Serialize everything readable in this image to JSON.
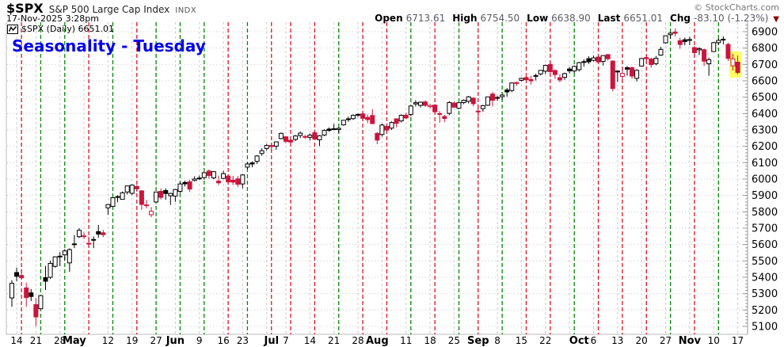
{
  "header": {
    "symbol": "$SPX",
    "name": "S&P 500 Large Cap Index",
    "exchange": "INDX",
    "timestamp": "17-Nov-2025 3:28pm",
    "copyright": "© StockCharts.com"
  },
  "quote": {
    "open_label": "Open",
    "open": "6713.61",
    "high_label": "High",
    "high": "6754.50",
    "low_label": "Low",
    "low": "6638.90",
    "last_label": "Last",
    "last": "6651.01",
    "chg_label": "Chg",
    "chg": "-83.10 (-1.23%)",
    "direction": "down"
  },
  "legend": {
    "text": "$SPX (Daily) 6651.01"
  },
  "annotation": {
    "text": "Seasonality - Tuesday",
    "color": "#0000ee"
  },
  "chart_data": {
    "type": "candlestick",
    "title": "$SPX Daily with Tuesday seasonality lines",
    "xlabel": "",
    "ylabel": "",
    "ylim": [
      5085,
      6955
    ],
    "grid": true,
    "legend_position": "top-left",
    "y_ticks": [
      5100,
      5200,
      5300,
      5400,
      5500,
      5600,
      5700,
      5800,
      5900,
      6000,
      6100,
      6200,
      6300,
      6400,
      6500,
      6600,
      6700,
      6800,
      6900
    ],
    "x_axis_labels": [
      {
        "i": 1,
        "t": "14",
        "b": 0
      },
      {
        "i": 5,
        "t": "21",
        "b": 0
      },
      {
        "i": 10,
        "t": "28",
        "b": 0
      },
      {
        "i": 13,
        "t": "May",
        "b": 1
      },
      {
        "i": 20,
        "t": "12",
        "b": 0
      },
      {
        "i": 25,
        "t": "19",
        "b": 0
      },
      {
        "i": 30,
        "t": "27",
        "b": 0
      },
      {
        "i": 34,
        "t": "Jun",
        "b": 1
      },
      {
        "i": 39,
        "t": "9",
        "b": 0
      },
      {
        "i": 44,
        "t": "16",
        "b": 0
      },
      {
        "i": 48,
        "t": "23",
        "b": 0
      },
      {
        "i": 54,
        "t": "Jul",
        "b": 1
      },
      {
        "i": 57,
        "t": "7",
        "b": 0
      },
      {
        "i": 62,
        "t": "14",
        "b": 0
      },
      {
        "i": 67,
        "t": "21",
        "b": 0
      },
      {
        "i": 72,
        "t": "28",
        "b": 0
      },
      {
        "i": 76,
        "t": "Aug",
        "b": 1
      },
      {
        "i": 82,
        "t": "11",
        "b": 0
      },
      {
        "i": 87,
        "t": "18",
        "b": 0
      },
      {
        "i": 92,
        "t": "25",
        "b": 0
      },
      {
        "i": 97,
        "t": "Sep",
        "b": 1
      },
      {
        "i": 101,
        "t": "8",
        "b": 0
      },
      {
        "i": 106,
        "t": "15",
        "b": 0
      },
      {
        "i": 111,
        "t": "22",
        "b": 0
      },
      {
        "i": 118,
        "t": "Oct",
        "b": 1
      },
      {
        "i": 121,
        "t": "6",
        "b": 0
      },
      {
        "i": 126,
        "t": "13",
        "b": 0
      },
      {
        "i": 131,
        "t": "20",
        "b": 0
      },
      {
        "i": 136,
        "t": "27",
        "b": 0
      },
      {
        "i": 141,
        "t": "Nov",
        "b": 1
      },
      {
        "i": 146,
        "t": "10",
        "b": 0
      },
      {
        "i": 151,
        "t": "17",
        "b": 0
      }
    ],
    "week_start_indices": [
      1,
      5,
      10,
      15,
      20,
      25,
      30,
      34,
      39,
      44,
      48,
      53,
      57,
      62,
      67,
      72,
      77,
      82,
      87,
      92,
      97,
      101,
      106,
      111,
      116,
      121,
      126,
      131,
      136,
      141,
      146,
      151
    ],
    "tuesday_indices": [
      2,
      6,
      11,
      16,
      21,
      26,
      30,
      35,
      40,
      45,
      49,
      54,
      58,
      63,
      68,
      73,
      78,
      83,
      88,
      93,
      97,
      102,
      107,
      112,
      117,
      122,
      127,
      132,
      137,
      142,
      147
    ],
    "highlight": {
      "from": 150,
      "to": 151,
      "color": "#ffff66"
    },
    "colors": {
      "up": "#000000",
      "down": "#cc143c",
      "tuesday_up": "#008800",
      "tuesday_down": "#dd1122",
      "grid": "#cccccc",
      "axis": "#999999",
      "label": "#000000"
    },
    "candles": [
      [
        "Apr 11",
        5274,
        5382,
        5220,
        5363
      ],
      [
        "Apr 14",
        5429,
        5459,
        5375,
        5406
      ],
      [
        "Apr 15",
        5411,
        5450,
        5386,
        5397
      ],
      [
        "Apr 16",
        5335,
        5367,
        5220,
        5276
      ],
      [
        "Apr 17",
        5305,
        5328,
        5255,
        5283
      ],
      [
        "Apr 21",
        5233,
        5273,
        5101,
        5158
      ],
      [
        "Apr 22",
        5208,
        5291,
        5204,
        5288
      ],
      [
        "Apr 23",
        5398,
        5469,
        5323,
        5376
      ],
      [
        "Apr 24",
        5400,
        5502,
        5389,
        5485
      ],
      [
        "Apr 25",
        5467,
        5528,
        5459,
        5525
      ],
      [
        "Apr 28",
        5529,
        5553,
        5469,
        5529
      ],
      [
        "Apr 29",
        5537,
        5572,
        5503,
        5561
      ],
      [
        "Apr 30",
        5488,
        5577,
        5433,
        5569
      ],
      [
        "May 1",
        5604,
        5658,
        5578,
        5604
      ],
      [
        "May 2",
        5648,
        5700,
        5640,
        5687
      ],
      [
        "May 5",
        5653,
        5674,
        5634,
        5650
      ],
      [
        "May 6",
        5608,
        5649,
        5586,
        5607
      ],
      [
        "May 7",
        5630,
        5650,
        5578,
        5631
      ],
      [
        "May 8",
        5679,
        5720,
        5641,
        5664
      ],
      [
        "May 9",
        5672,
        5689,
        5645,
        5660
      ],
      [
        "May 12",
        5824,
        5845,
        5781,
        5844
      ],
      [
        "May 13",
        5833,
        5887,
        5830,
        5886
      ],
      [
        "May 14",
        5891,
        5901,
        5858,
        5893
      ],
      [
        "May 15",
        5876,
        5924,
        5874,
        5916
      ],
      [
        "May 16",
        5921,
        5959,
        5906,
        5958
      ],
      [
        "May 19",
        5913,
        5968,
        5902,
        5963
      ],
      [
        "May 20",
        5955,
        5963,
        5921,
        5940
      ],
      [
        "May 21",
        5928,
        5932,
        5812,
        5845
      ],
      [
        "May 22",
        5842,
        5872,
        5821,
        5842
      ],
      [
        "May 23",
        5782,
        5829,
        5768,
        5803
      ],
      [
        "May 27",
        5860,
        5923,
        5858,
        5921
      ],
      [
        "May 28",
        5925,
        5942,
        5875,
        5888
      ],
      [
        "May 29",
        5930,
        5943,
        5873,
        5912
      ],
      [
        "May 30",
        5898,
        5916,
        5842,
        5912
      ],
      [
        "Jun 2",
        5896,
        5940,
        5861,
        5936
      ],
      [
        "Jun 3",
        5925,
        5982,
        5914,
        5970
      ],
      [
        "Jun 4",
        5979,
        5990,
        5955,
        5971
      ],
      [
        "Jun 5",
        5983,
        5996,
        5921,
        5939
      ],
      [
        "Jun 6",
        5991,
        6017,
        5986,
        6000
      ],
      [
        "Jun 9",
        6004,
        6021,
        5995,
        6006
      ],
      [
        "Jun 10",
        6009,
        6043,
        5996,
        6039
      ],
      [
        "Jun 11",
        6049,
        6059,
        6002,
        6022
      ],
      [
        "Jun 12",
        6007,
        6049,
        5998,
        6045
      ],
      [
        "Jun 13",
        5987,
        6021,
        5963,
        5977
      ],
      [
        "Jun 16",
        6004,
        6050,
        6001,
        6033
      ],
      [
        "Jun 17",
        6018,
        6030,
        5967,
        5983
      ],
      [
        "Jun 18",
        5993,
        6020,
        5963,
        5981
      ],
      [
        "Jun 20",
        6001,
        6018,
        5952,
        5968
      ],
      [
        "Jun 23",
        5970,
        6031,
        5943,
        6025
      ],
      [
        "Jun 24",
        6073,
        6101,
        6059,
        6092
      ],
      [
        "Jun 25",
        6099,
        6108,
        6072,
        6092
      ],
      [
        "Jun 26",
        6108,
        6146,
        6093,
        6141
      ],
      [
        "Jun 27",
        6156,
        6188,
        6143,
        6173
      ],
      [
        "Jun 30",
        6187,
        6215,
        6174,
        6205
      ],
      [
        "Jul 1",
        6205,
        6211,
        6177,
        6198
      ],
      [
        "Jul 2",
        6201,
        6228,
        6178,
        6227
      ],
      [
        "Jul 3",
        6247,
        6284,
        6243,
        6279
      ],
      [
        "Jul 7",
        6258,
        6263,
        6219,
        6230
      ],
      [
        "Jul 8",
        6237,
        6243,
        6209,
        6226
      ],
      [
        "Jul 9",
        6242,
        6269,
        6232,
        6263
      ],
      [
        "Jul 10",
        6266,
        6290,
        6251,
        6280
      ],
      [
        "Jul 11",
        6255,
        6270,
        6245,
        6260
      ],
      [
        "Jul 14",
        6255,
        6277,
        6236,
        6268
      ],
      [
        "Jul 15",
        6283,
        6302,
        6241,
        6244
      ],
      [
        "Jul 16",
        6240,
        6268,
        6201,
        6264
      ],
      [
        "Jul 17",
        6269,
        6304,
        6262,
        6297
      ],
      [
        "Jul 18",
        6305,
        6315,
        6289,
        6297
      ],
      [
        "Jul 21",
        6307,
        6336,
        6298,
        6306
      ],
      [
        "Jul 22",
        6303,
        6316,
        6281,
        6310
      ],
      [
        "Jul 23",
        6331,
        6360,
        6326,
        6359
      ],
      [
        "Jul 24",
        6368,
        6381,
        6350,
        6363
      ],
      [
        "Jul 25",
        6369,
        6395,
        6361,
        6389
      ],
      [
        "Jul 28",
        6395,
        6400,
        6379,
        6390
      ],
      [
        "Jul 29",
        6398,
        6409,
        6360,
        6371
      ],
      [
        "Jul 30",
        6376,
        6394,
        6341,
        6363
      ],
      [
        "Jul 31",
        6388,
        6427,
        6334,
        6339
      ],
      [
        "Aug 1",
        6279,
        6287,
        6213,
        6238
      ],
      [
        "Aug 4",
        6272,
        6338,
        6259,
        6330
      ],
      [
        "Aug 5",
        6322,
        6340,
        6279,
        6299
      ],
      [
        "Aug 6",
        6311,
        6352,
        6300,
        6345
      ],
      [
        "Aug 7",
        6368,
        6371,
        6316,
        6340
      ],
      [
        "Aug 8",
        6355,
        6395,
        6347,
        6389
      ],
      [
        "Aug 11",
        6390,
        6405,
        6366,
        6373
      ],
      [
        "Aug 12",
        6395,
        6446,
        6383,
        6446
      ],
      [
        "Aug 13",
        6459,
        6481,
        6443,
        6466
      ],
      [
        "Aug 14",
        6450,
        6473,
        6437,
        6469
      ],
      [
        "Aug 15",
        6471,
        6481,
        6441,
        6450
      ],
      [
        "Aug 18",
        6442,
        6458,
        6432,
        6449
      ],
      [
        "Aug 19",
        6452,
        6457,
        6401,
        6411
      ],
      [
        "Aug 20",
        6400,
        6415,
        6344,
        6395
      ],
      [
        "Aug 21",
        6382,
        6392,
        6348,
        6370
      ],
      [
        "Aug 22",
        6401,
        6476,
        6390,
        6467
      ],
      [
        "Aug 25",
        6464,
        6474,
        6436,
        6439
      ],
      [
        "Aug 26",
        6432,
        6466,
        6426,
        6466
      ],
      [
        "Aug 27",
        6467,
        6486,
        6457,
        6481
      ],
      [
        "Aug 28",
        6475,
        6508,
        6462,
        6502
      ],
      [
        "Aug 29",
        6494,
        6499,
        6444,
        6460
      ],
      [
        "Sep 2",
        6413,
        6444,
        6360,
        6415
      ],
      [
        "Sep 3",
        6430,
        6453,
        6411,
        6448
      ],
      [
        "Sep 4",
        6451,
        6503,
        6447,
        6502
      ],
      [
        "Sep 5",
        6519,
        6533,
        6443,
        6481
      ],
      [
        "Sep 8",
        6498,
        6508,
        6477,
        6495
      ],
      [
        "Sep 9",
        6503,
        6519,
        6483,
        6513
      ],
      [
        "Sep 10",
        6544,
        6556,
        6503,
        6532
      ],
      [
        "Sep 11",
        6541,
        6590,
        6531,
        6587
      ],
      [
        "Sep 12",
        6589,
        6596,
        6570,
        6584
      ],
      [
        "Sep 15",
        6603,
        6619,
        6596,
        6615
      ],
      [
        "Sep 16",
        6620,
        6626,
        6596,
        6607
      ],
      [
        "Sep 17",
        6608,
        6630,
        6577,
        6600
      ],
      [
        "Sep 18",
        6630,
        6643,
        6602,
        6632
      ],
      [
        "Sep 19",
        6642,
        6666,
        6633,
        6664
      ],
      [
        "Sep 22",
        6659,
        6699,
        6641,
        6694
      ],
      [
        "Sep 23",
        6700,
        6707,
        6649,
        6656
      ],
      [
        "Sep 24",
        6663,
        6670,
        6612,
        6638
      ],
      [
        "Sep 25",
        6619,
        6640,
        6591,
        6605
      ],
      [
        "Sep 26",
        6621,
        6650,
        6606,
        6644
      ],
      [
        "Sep 29",
        6672,
        6685,
        6644,
        6661
      ],
      [
        "Sep 30",
        6660,
        6693,
        6646,
        6688
      ],
      [
        "Oct 1",
        6668,
        6716,
        6657,
        6711
      ],
      [
        "Oct 2",
        6717,
        6732,
        6686,
        6715
      ],
      [
        "Oct 3",
        6735,
        6750,
        6703,
        6716
      ],
      [
        "Oct 6",
        6725,
        6754,
        6718,
        6740
      ],
      [
        "Oct 7",
        6745,
        6756,
        6708,
        6715
      ],
      [
        "Oct 8",
        6718,
        6757,
        6693,
        6754
      ],
      [
        "Oct 9",
        6760,
        6764,
        6723,
        6735
      ],
      [
        "Oct 10",
        6720,
        6726,
        6536,
        6553
      ],
      [
        "Oct 13",
        6660,
        6663,
        6593,
        6654
      ],
      [
        "Oct 14",
        6627,
        6679,
        6598,
        6645
      ],
      [
        "Oct 15",
        6680,
        6690,
        6631,
        6671
      ],
      [
        "Oct 16",
        6680,
        6687,
        6612,
        6629
      ],
      [
        "Oct 17",
        6615,
        6671,
        6596,
        6664
      ],
      [
        "Oct 20",
        6690,
        6739,
        6687,
        6736
      ],
      [
        "Oct 21",
        6742,
        6755,
        6717,
        6735
      ],
      [
        "Oct 22",
        6733,
        6741,
        6680,
        6699
      ],
      [
        "Oct 23",
        6705,
        6752,
        6695,
        6738
      ],
      [
        "Oct 24",
        6757,
        6807,
        6752,
        6792
      ],
      [
        "Oct 27",
        6832,
        6877,
        6827,
        6875
      ],
      [
        "Oct 28",
        6882,
        6899,
        6857,
        6891
      ],
      [
        "Oct 29",
        6898,
        6920,
        6870,
        6890
      ],
      [
        "Oct 30",
        6845,
        6863,
        6796,
        6822
      ],
      [
        "Oct 31",
        6851,
        6864,
        6817,
        6840
      ],
      [
        "Nov 3",
        6847,
        6869,
        6818,
        6852
      ],
      [
        "Nov 4",
        6803,
        6812,
        6743,
        6772
      ],
      [
        "Nov 5",
        6789,
        6806,
        6757,
        6796
      ],
      [
        "Nov 6",
        6790,
        6796,
        6690,
        6720
      ],
      [
        "Nov 7",
        6704,
        6742,
        6631,
        6729
      ],
      [
        "Nov 10",
        6779,
        6838,
        6779,
        6833
      ],
      [
        "Nov 11",
        6833,
        6859,
        6820,
        6847
      ],
      [
        "Nov 12",
        6854,
        6872,
        6822,
        6851
      ],
      [
        "Nov 13",
        6822,
        6832,
        6721,
        6737
      ],
      [
        "Nov 14",
        6691,
        6765,
        6662,
        6734
      ],
      [
        "Nov 17",
        6714,
        6755,
        6639,
        6651
      ]
    ]
  }
}
